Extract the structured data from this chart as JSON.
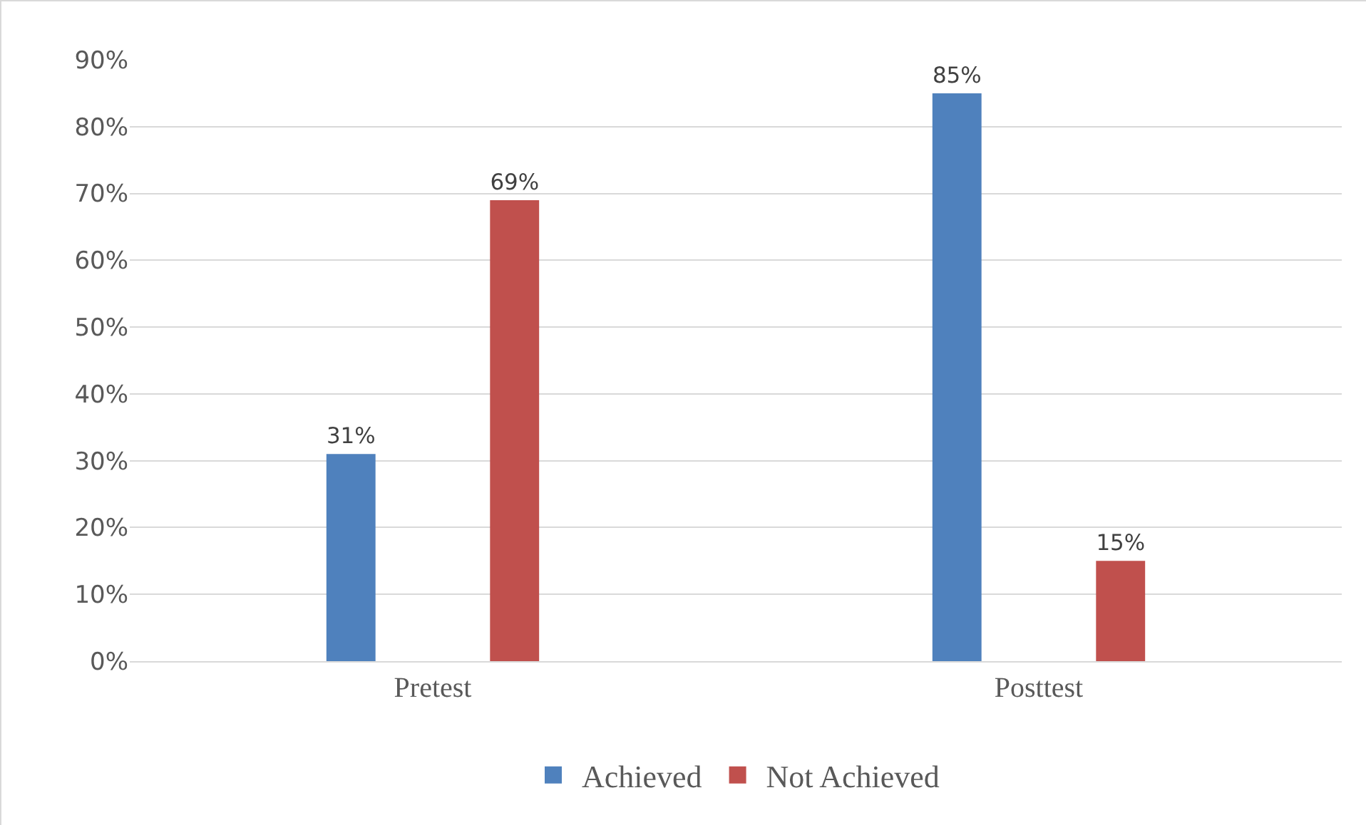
{
  "chart_data": {
    "type": "bar",
    "categories": [
      "Pretest",
      "Posttest"
    ],
    "series": [
      {
        "name": "Achieved",
        "color": "#4f81bd",
        "values": [
          31,
          85
        ],
        "value_labels": [
          "31%",
          "85%"
        ]
      },
      {
        "name": "Not Achieved",
        "color": "#c0504d",
        "values": [
          69,
          15
        ],
        "value_labels": [
          "69%",
          "15%"
        ]
      }
    ],
    "ylim": [
      0,
      90
    ],
    "yticks": [
      {
        "value": 0,
        "label": "0%"
      },
      {
        "value": 10,
        "label": "10%"
      },
      {
        "value": 20,
        "label": "20%"
      },
      {
        "value": 30,
        "label": "30%"
      },
      {
        "value": 40,
        "label": "40%"
      },
      {
        "value": 50,
        "label": "50%"
      },
      {
        "value": 60,
        "label": "60%"
      },
      {
        "value": 70,
        "label": "70%"
      },
      {
        "value": 80,
        "label": "80%"
      },
      {
        "value": 90,
        "label": "90%"
      }
    ],
    "grid": "y",
    "legend": "bottom"
  }
}
